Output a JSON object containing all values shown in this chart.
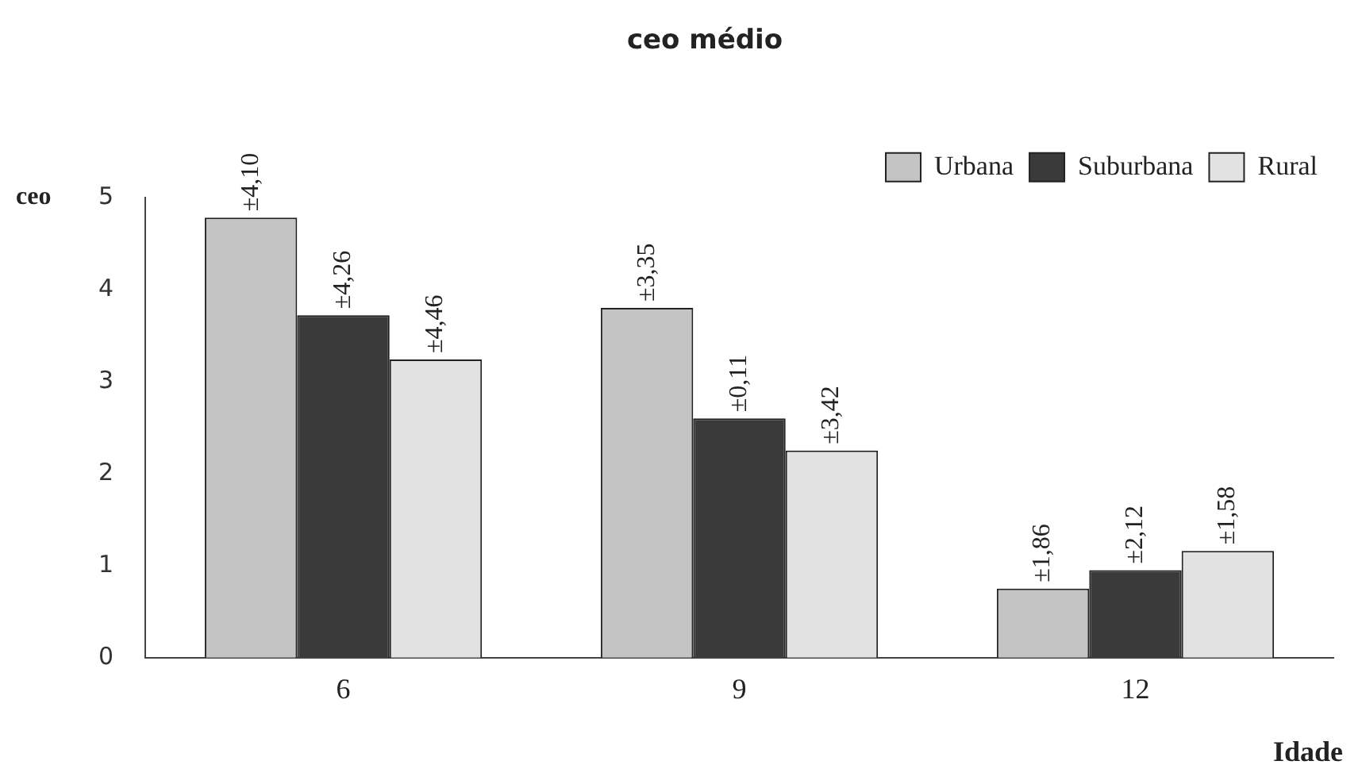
{
  "chart_data": {
    "type": "bar",
    "title": "ceo médio",
    "xlabel": "Idade",
    "ylabel": "ceo",
    "categories": [
      "6",
      "9",
      "12"
    ],
    "series": [
      {
        "name": "Urbana",
        "color": "#c4c4c4",
        "values": [
          4.78,
          3.8,
          0.75
        ]
      },
      {
        "name": "Suburbana",
        "color": "#3a3a3a",
        "values": [
          3.72,
          2.6,
          0.95
        ]
      },
      {
        "name": "Rural",
        "color": "#e2e2e2",
        "values": [
          3.24,
          2.25,
          1.16
        ]
      }
    ],
    "annotations": [
      "±4,10",
      "±4,26",
      "±4,46",
      "±3,35",
      "±0,11",
      "±3,42",
      "±1,86",
      "±2,12",
      "±1,58"
    ],
    "ylim": [
      0,
      5
    ],
    "yticks": [
      0,
      1,
      2,
      3,
      4,
      5
    ],
    "grid": false,
    "legend": "top right"
  }
}
